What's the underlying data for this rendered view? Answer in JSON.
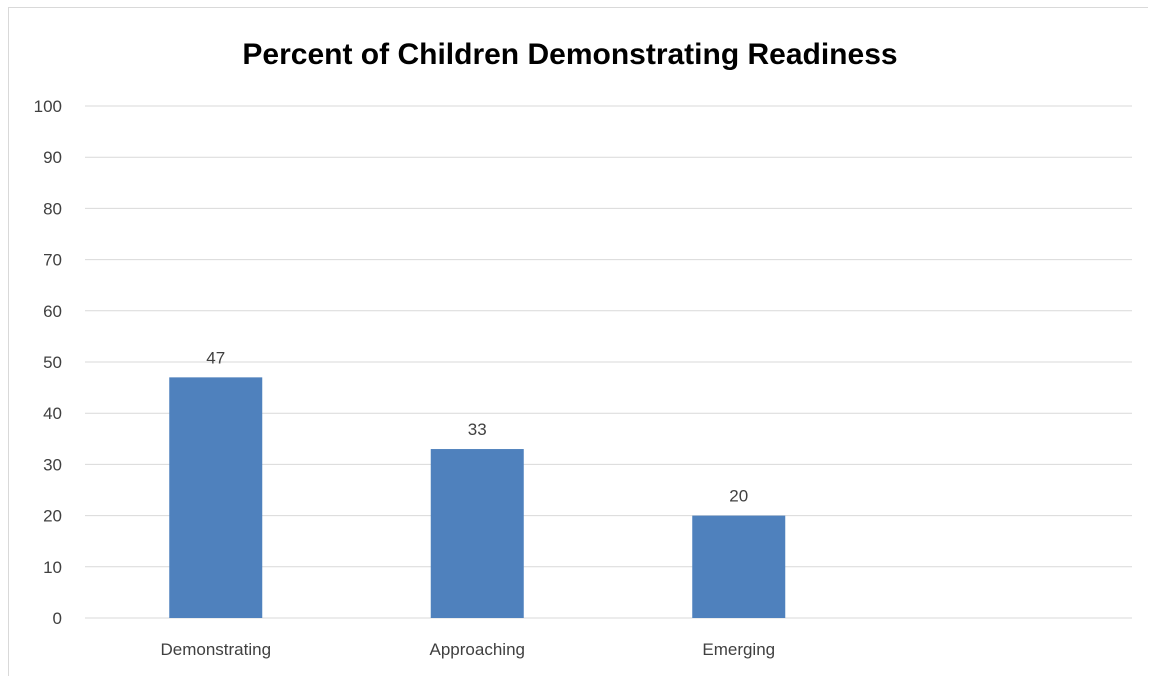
{
  "chart_data": {
    "type": "bar",
    "title": "Percent of Children Demonstrating Readiness",
    "categories": [
      "Demonstrating",
      "Approaching",
      "Emerging"
    ],
    "values": [
      47,
      33,
      20
    ],
    "data_labels": [
      "47",
      "33",
      "20"
    ],
    "yticks": [
      "0",
      "10",
      "20",
      "30",
      "40",
      "50",
      "60",
      "70",
      "80",
      "90",
      "100"
    ],
    "ylim": [
      0,
      100
    ],
    "grid": true,
    "legend": "none",
    "bar_color": "#4F81BD"
  }
}
